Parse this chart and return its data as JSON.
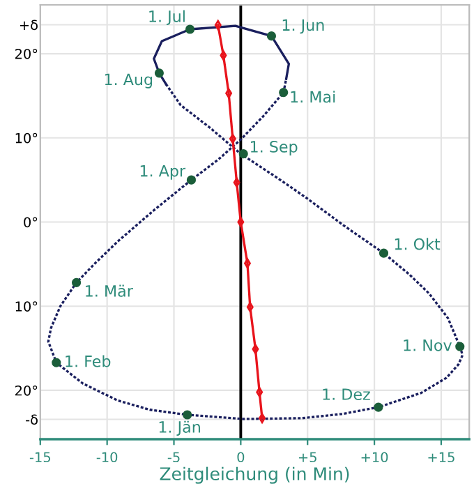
{
  "chart_data": {
    "type": "line",
    "xlabel": "Zeitgleichung (in Min)",
    "xlim": [
      -15,
      17.1
    ],
    "ylim": [
      -25.8,
      25.8
    ],
    "xticks": [
      -15,
      -10,
      -5,
      0,
      {
        "value": 5,
        "label": "+5"
      },
      {
        "value": 10,
        "label": "+10"
      },
      {
        "value": 15,
        "label": "+15"
      }
    ],
    "yticks": [
      {
        "value": -23.44,
        "label": "-δ"
      },
      {
        "value": -20,
        "label": "20°"
      },
      {
        "value": -10,
        "label": "10°"
      },
      {
        "value": 0,
        "label": "0°"
      },
      {
        "value": 10,
        "label": "10°"
      },
      {
        "value": 20,
        "label": "20°"
      },
      {
        "value": 23.44,
        "label": "+δ"
      }
    ],
    "grid": true,
    "legend": false,
    "ref_lines": [
      {
        "axis": "x",
        "value": 0,
        "color": "#000000",
        "line_style": "solid"
      }
    ],
    "series": [
      {
        "color": "#1a1f5e",
        "line_style": "dotted",
        "marker": "none",
        "x": [
          -5.6,
          -4.5,
          -2.3,
          0.0,
          2.4,
          4.8,
          7.7,
          10.7,
          12.6,
          14.1,
          15.5,
          16.4,
          16.6,
          16.3,
          15.4,
          13.5,
          10.3,
          7.6,
          4.6,
          0.2,
          -4.0,
          -6.8,
          -9.2,
          -11.8,
          -13.8,
          -14.4,
          -14.2,
          -13.5,
          -12.3,
          -10.9,
          -9.2,
          -6.5,
          -3.7,
          -1.7,
          0.0,
          1.7,
          3.2,
          3.4
        ],
        "values": [
          16.4,
          13.9,
          11.2,
          8.1,
          5.6,
          3.0,
          -0.4,
          -3.7,
          -6.2,
          -8.5,
          -11.4,
          -14.8,
          -15.8,
          -16.9,
          -18.5,
          -20.3,
          -22.0,
          -22.8,
          -23.3,
          -23.4,
          -22.9,
          -22.3,
          -21.2,
          -19.2,
          -16.7,
          -14.2,
          -12.6,
          -10.0,
          -7.2,
          -4.9,
          -2.3,
          1.4,
          5.0,
          7.4,
          9.8,
          12.6,
          15.4,
          17.0
        ]
      },
      {
        "color": "#1a1f5e",
        "line_style": "solid",
        "marker": "none",
        "x": [
          3.4,
          3.6,
          2.3,
          -0.4,
          -3.8,
          -5.9,
          -6.5,
          -6.1,
          -5.6
        ],
        "values": [
          17.0,
          18.8,
          22.1,
          23.3,
          22.9,
          21.5,
          19.4,
          17.7,
          16.4
        ]
      },
      {
        "type": "scatter",
        "color": "#1b5e3a",
        "marker": "circle",
        "x": [
          -4.0,
          -13.8,
          -12.3,
          -3.7,
          3.2,
          2.3,
          -3.8,
          -6.1,
          0.2,
          10.7,
          16.4,
          10.3
        ],
        "values": [
          -22.9,
          -16.7,
          -7.2,
          5.0,
          15.4,
          22.1,
          22.9,
          17.7,
          8.1,
          -3.7,
          -14.8,
          -22.0
        ]
      },
      {
        "color": "#e8141c",
        "line_style": "solid",
        "marker": "diamond",
        "x": [
          -1.7,
          -1.3,
          -0.9,
          -0.6,
          -0.3,
          0.0,
          0.5,
          0.7,
          1.1,
          1.4,
          1.6
        ],
        "values": [
          23.4,
          19.8,
          15.3,
          9.9,
          4.7,
          0.0,
          -4.9,
          -10.1,
          -15.1,
          -20.2,
          -23.3
        ]
      }
    ],
    "annotations": [
      {
        "text": "1. Jän",
        "x": -4.0,
        "y": -22.9
      },
      {
        "text": "1. Feb",
        "x": -13.8,
        "y": -16.7
      },
      {
        "text": "1. Mär",
        "x": -12.3,
        "y": -7.2
      },
      {
        "text": "1. Apr",
        "x": -3.7,
        "y": 5.0
      },
      {
        "text": "1. Mai",
        "x": 3.2,
        "y": 15.4
      },
      {
        "text": "1. Jun",
        "x": 2.3,
        "y": 22.1
      },
      {
        "text": "1. Jul",
        "x": -3.8,
        "y": 22.9
      },
      {
        "text": "1. Aug",
        "x": -6.1,
        "y": 17.7
      },
      {
        "text": "1. Sep",
        "x": 0.2,
        "y": 8.1
      },
      {
        "text": "1. Okt",
        "x": 10.7,
        "y": -3.7
      },
      {
        "text": "1. Nov",
        "x": 16.4,
        "y": -14.8
      },
      {
        "text": "1. Dez",
        "x": 10.3,
        "y": -22.0
      }
    ]
  }
}
